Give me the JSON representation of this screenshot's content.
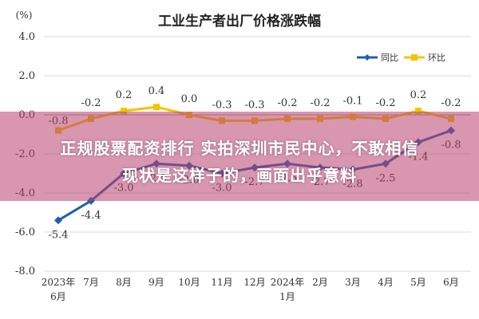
{
  "chart_data": {
    "type": "line",
    "title": "工业生产者出厂价格涨跌幅",
    "unit": "(%)",
    "x": [
      "2023年\n6月",
      "7月",
      "8月",
      "9月",
      "10月",
      "11月",
      "12月",
      "2024年\n1月",
      "2月",
      "3月",
      "4月",
      "5月",
      "6月"
    ],
    "ylim": [
      -8.0,
      4.0
    ],
    "yticks": [
      "4.0",
      "2.0",
      "0.0",
      "-2.0",
      "-4.0",
      "-6.0",
      "-8.0"
    ],
    "grid": true,
    "legend_position": "top-right",
    "series": [
      {
        "name": "同比",
        "color": "#1f5fae",
        "values": [
          -5.4,
          -4.4,
          -3.0,
          -2.5,
          -2.6,
          -3.0,
          -2.7,
          -2.5,
          -2.7,
          -2.8,
          -2.5,
          -1.4,
          -0.8
        ],
        "labels": [
          "-5.4",
          "-4.4",
          "-3.0",
          "-2.5",
          "-2.6",
          "-3.0",
          "-2.7",
          "-2.5",
          "-2.7",
          "-2.8",
          "-2.5",
          "-1.4",
          "-0.8"
        ]
      },
      {
        "name": "环比",
        "color": "#f4c400",
        "values": [
          -0.8,
          -0.2,
          0.2,
          0.4,
          0.0,
          -0.3,
          -0.3,
          -0.2,
          -0.2,
          -0.1,
          -0.2,
          0.2,
          -0.2
        ],
        "labels": [
          "-0.8",
          "-0.2",
          "0.2",
          "0.4",
          "0.0",
          "-0.3",
          "-0.3",
          "-0.2",
          "-0.2",
          "-0.1",
          "-0.2",
          "0.2",
          "-0.2"
        ]
      }
    ]
  },
  "overlay": {
    "line1": "正规股票配资排行 实拍深圳市民中心，不敢相信",
    "line2": "现状是这样子的，画面出乎意料"
  }
}
